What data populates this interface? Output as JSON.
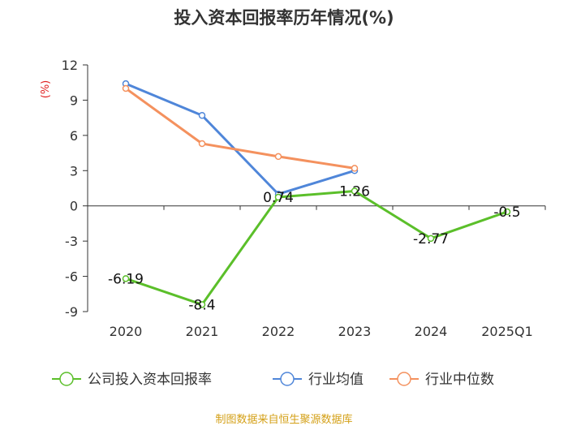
{
  "chart_data": {
    "type": "line",
    "title": "投入资本回报率历年情况(%)",
    "ylabel": "(%)",
    "xlabel": "",
    "categories": [
      "2020",
      "2021",
      "2022",
      "2023",
      "2024",
      "2025Q1"
    ],
    "ylim": [
      -9,
      12
    ],
    "yticks": [
      12,
      9,
      6,
      3,
      0,
      -3,
      -6,
      -9
    ],
    "grid": false,
    "legend_position": "bottom",
    "series": [
      {
        "name": "公司投入资本回报率",
        "color": "#5bbf2a",
        "values": [
          -6.19,
          -8.4,
          0.74,
          1.26,
          -2.77,
          -0.5
        ],
        "labels": [
          "-6.19",
          "-8.4",
          "0.74",
          "1.26",
          "-2.77",
          "-0.5"
        ]
      },
      {
        "name": "行业均值",
        "color": "#4f86d9",
        "values": [
          10.4,
          7.7,
          1.0,
          3.0,
          null,
          null
        ]
      },
      {
        "name": "行业中位数",
        "color": "#f4915e",
        "values": [
          10.0,
          5.3,
          4.2,
          3.2,
          null,
          null
        ]
      }
    ]
  },
  "footer": {
    "source": "制图数据来自恒生聚源数据库"
  }
}
